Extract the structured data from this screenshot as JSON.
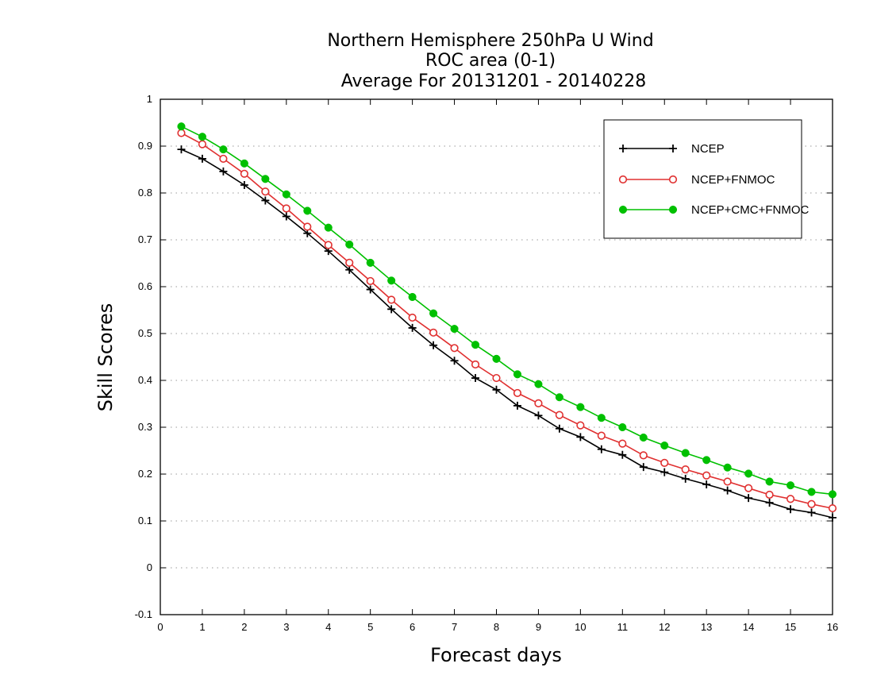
{
  "chart_data": {
    "type": "line",
    "title_lines": [
      "Northern Hemisphere 250hPa U Wind",
      "ROC area (0-1)",
      "Average For 20131201 - 20140228"
    ],
    "xlabel": "Forecast days",
    "ylabel": "Skill Scores",
    "xlim": [
      0,
      16
    ],
    "ylim": [
      -0.1,
      1
    ],
    "x_ticks": [
      0,
      1,
      2,
      3,
      4,
      5,
      6,
      7,
      8,
      9,
      10,
      11,
      12,
      13,
      14,
      15,
      16
    ],
    "x_tick_labels": [
      "0",
      "1",
      "2",
      "3",
      "4",
      "5",
      "6",
      "7",
      "8",
      "9",
      "10",
      "11",
      "12",
      "13",
      "14",
      "15",
      "16"
    ],
    "y_ticks": [
      -0.1,
      0,
      0.1,
      0.2,
      0.3,
      0.4,
      0.5,
      0.6,
      0.7,
      0.8,
      0.9,
      1
    ],
    "y_tick_labels": [
      "-0.1",
      "0",
      "0.1",
      "0.2",
      "0.3",
      "0.4",
      "0.5",
      "0.6",
      "0.7",
      "0.8",
      "0.9",
      "1"
    ],
    "grid": "horizontal dotted",
    "legend_position": "top-right",
    "x": [
      0.5,
      1,
      1.5,
      2,
      2.5,
      3,
      3.5,
      4,
      4.5,
      5,
      5.5,
      6,
      6.5,
      7,
      7.5,
      8,
      8.5,
      9,
      9.5,
      10,
      10.5,
      11,
      11.5,
      12,
      12.5,
      13,
      13.5,
      14,
      14.5,
      15,
      15.5,
      16
    ],
    "series": [
      {
        "name": "NCEP",
        "color": "#000000",
        "marker": "plus",
        "values": [
          0.893,
          0.873,
          0.846,
          0.817,
          0.784,
          0.75,
          0.714,
          0.676,
          0.636,
          0.594,
          0.552,
          0.512,
          0.475,
          0.442,
          0.405,
          0.38,
          0.346,
          0.325,
          0.297,
          0.279,
          0.253,
          0.241,
          0.215,
          0.204,
          0.19,
          0.178,
          0.165,
          0.149,
          0.139,
          0.125,
          0.118,
          0.107
        ]
      },
      {
        "name": "NCEP+FNMOC",
        "color": "#e03030",
        "marker": "open-circle",
        "values": [
          0.928,
          0.904,
          0.873,
          0.841,
          0.803,
          0.767,
          0.728,
          0.689,
          0.651,
          0.612,
          0.572,
          0.534,
          0.502,
          0.469,
          0.434,
          0.405,
          0.373,
          0.351,
          0.326,
          0.304,
          0.282,
          0.265,
          0.24,
          0.224,
          0.21,
          0.197,
          0.184,
          0.17,
          0.156,
          0.147,
          0.136,
          0.127
        ]
      },
      {
        "name": "NCEP+CMC+FNMOC",
        "color": "#00c000",
        "marker": "filled-circle",
        "values": [
          0.942,
          0.92,
          0.893,
          0.863,
          0.83,
          0.797,
          0.762,
          0.726,
          0.69,
          0.651,
          0.613,
          0.578,
          0.543,
          0.51,
          0.476,
          0.446,
          0.413,
          0.392,
          0.364,
          0.343,
          0.32,
          0.3,
          0.278,
          0.261,
          0.245,
          0.23,
          0.214,
          0.201,
          0.184,
          0.176,
          0.162,
          0.157
        ]
      }
    ]
  }
}
